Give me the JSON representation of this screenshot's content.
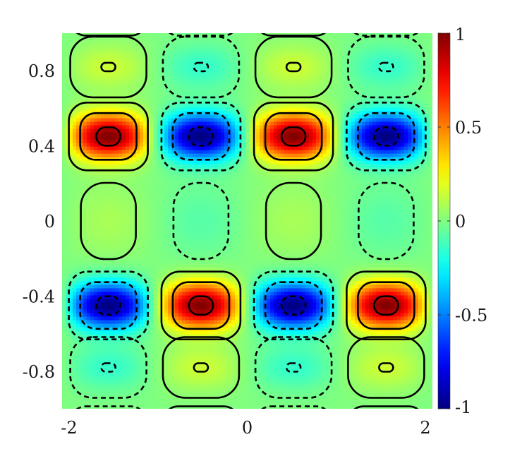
{
  "chart_data": {
    "type": "heatmap",
    "title": "",
    "xlabel": "",
    "ylabel": "",
    "xlim": [
      -2,
      2
    ],
    "ylim": [
      -1,
      1
    ],
    "x_ticks": [
      {
        "value": -2,
        "label": "-2"
      },
      {
        "value": 0,
        "label": "0"
      },
      {
        "value": 2,
        "label": "2"
      }
    ],
    "y_ticks": [
      {
        "value": 0.8,
        "label": "0.8"
      },
      {
        "value": 0.4,
        "label": "0.4"
      },
      {
        "value": 0,
        "label": "0"
      },
      {
        "value": -0.4,
        "label": "-0.4"
      },
      {
        "value": -0.8,
        "label": "-0.8"
      }
    ],
    "colorbar": {
      "colormap": "jet",
      "range": [
        -1,
        1
      ],
      "ticks": [
        {
          "value": 1,
          "label": "1"
        },
        {
          "value": 0.5,
          "label": "0.5"
        },
        {
          "value": 0,
          "label": "0"
        },
        {
          "value": -0.5,
          "label": "-0.5"
        },
        {
          "value": -1,
          "label": "-1"
        }
      ]
    },
    "field": {
      "x_period": 2,
      "bands": [
        {
          "y": 0.45,
          "amplitude": 1.0,
          "x_peak": 0.5
        },
        {
          "y": -0.45,
          "amplitude": 1.0,
          "x_peak": -0.5
        },
        {
          "y": 0.82,
          "amplitude": 0.15,
          "x_peak": 0.5
        },
        {
          "y": -0.78,
          "amplitude": 0.15,
          "x_peak": -0.5
        },
        {
          "y": 0.0,
          "amplitude": 0.08,
          "x_peak": 0.5
        }
      ]
    },
    "contour_overlay": {
      "positive_levels": "solid",
      "negative_levels": "dashed",
      "color": "#000000"
    }
  }
}
